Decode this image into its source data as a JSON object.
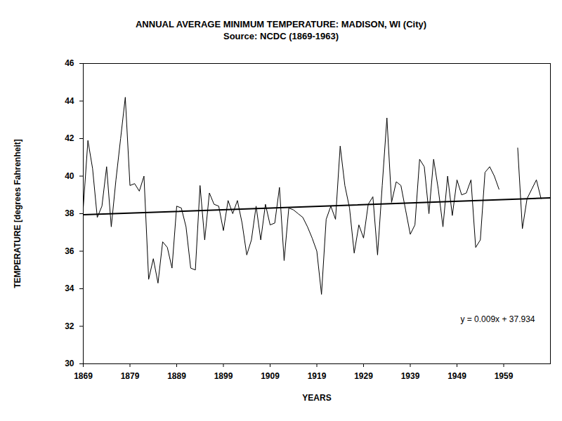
{
  "chart_data": {
    "type": "line",
    "title": "ANNUAL AVERAGE MINIMUM TEMPERATURE: MADISON, WI (City)",
    "subtitle": "Source: NCDC (1869-1963)",
    "x_label": "YEARS",
    "y_label": "TEMPERATURE [degrees Fahrenheit]",
    "x": [
      1869,
      1870,
      1871,
      1872,
      1873,
      1874,
      1875,
      1876,
      1877,
      1878,
      1879,
      1880,
      1881,
      1882,
      1883,
      1884,
      1885,
      1886,
      1887,
      1888,
      1889,
      1890,
      1891,
      1892,
      1893,
      1894,
      1895,
      1896,
      1897,
      1898,
      1899,
      1900,
      1901,
      1902,
      1903,
      1904,
      1905,
      1906,
      1907,
      1908,
      1909,
      1910,
      1911,
      1912,
      1913,
      1914,
      1915,
      1916,
      1917,
      1918,
      1919,
      1920,
      1921,
      1922,
      1923,
      1924,
      1925,
      1926,
      1927,
      1928,
      1929,
      1930,
      1931,
      1932,
      1933,
      1934,
      1935,
      1936,
      1937,
      1938,
      1939,
      1940,
      1941,
      1942,
      1943,
      1944,
      1945,
      1946,
      1947,
      1948,
      1949,
      1950,
      1951,
      1952,
      1953,
      1954,
      1955,
      1956,
      1957,
      1958,
      1959,
      1960,
      1961,
      1962,
      1963,
      1964,
      1965,
      1966,
      1967
    ],
    "values": [
      38.3,
      41.9,
      40.4,
      37.8,
      38.4,
      40.5,
      37.3,
      39.8,
      42.0,
      44.2,
      39.5,
      39.6,
      39.2,
      40.0,
      34.5,
      35.6,
      34.3,
      36.5,
      36.2,
      35.1,
      38.4,
      38.3,
      37.3,
      35.1,
      35.0,
      39.5,
      36.6,
      39.1,
      38.5,
      38.4,
      37.1,
      38.7,
      38.0,
      38.7,
      37.5,
      35.8,
      36.6,
      38.4,
      36.6,
      38.5,
      37.4,
      37.5,
      39.4,
      35.5,
      38.3,
      38.2,
      38.0,
      37.8,
      37.3,
      36.7,
      36.0,
      33.7,
      37.7,
      38.4,
      37.7,
      41.6,
      39.5,
      38.3,
      35.9,
      37.4,
      36.7,
      38.5,
      38.9,
      35.8,
      39.5,
      43.1,
      38.6,
      39.7,
      39.5,
      38.2,
      36.9,
      37.4,
      40.9,
      40.5,
      38.0,
      40.9,
      39.3,
      37.3,
      40.0,
      37.9,
      39.8,
      39.0,
      39.1,
      39.8,
      36.2,
      36.6,
      40.2,
      40.5,
      40.0,
      39.3,
      null,
      null,
      null,
      41.5,
      37.2,
      38.8,
      39.3,
      39.8,
      38.8
    ],
    "color": "#000000",
    "trendline": {
      "x": [
        1869,
        1969
      ],
      "values": [
        37.94,
        38.84
      ],
      "color": "#000000",
      "equation": "y = 0.009x + 37.934"
    },
    "xlim": [
      1869,
      1969
    ],
    "xticks": [
      1869,
      1879,
      1889,
      1899,
      1909,
      1919,
      1929,
      1939,
      1949,
      1959
    ],
    "ylim": [
      30,
      46
    ],
    "yticks": [
      30,
      32,
      34,
      36,
      38,
      40,
      42,
      44,
      46
    ],
    "grid": false
  }
}
